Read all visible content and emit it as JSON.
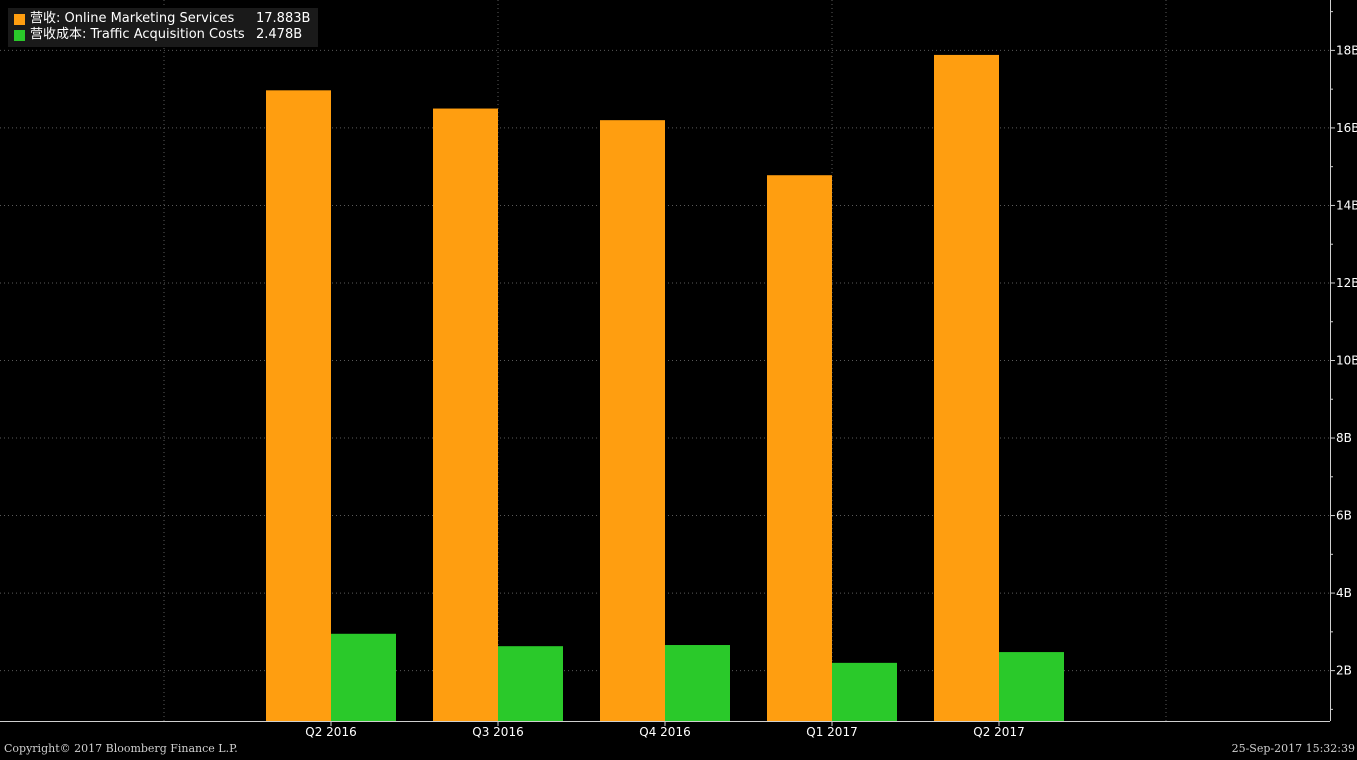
{
  "chart_data": {
    "type": "bar",
    "categories": [
      "Q2 2016",
      "Q3 2016",
      "Q4 2016",
      "Q1 2017",
      "Q2 2017"
    ],
    "series": [
      {
        "name": "营收: Online Marketing Services",
        "legend_value": "17.883B",
        "color": "#ff9e10",
        "values": [
          16.97,
          16.5,
          16.2,
          14.78,
          17.883
        ]
      },
      {
        "name": "营收成本: Traffic Acquisition Costs",
        "legend_value": "2.478B",
        "color": "#2ac92a",
        "values": [
          2.95,
          2.63,
          2.66,
          2.2,
          2.478
        ]
      }
    ],
    "y_ticks": [
      2,
      4,
      6,
      8,
      10,
      12,
      14,
      16,
      18
    ],
    "y_tick_labels": [
      "2B",
      "4B",
      "6B",
      "8B",
      "10B",
      "12B",
      "14B",
      "16B",
      "18B"
    ],
    "ylim": [
      0.7,
      19.3
    ],
    "y_axis_side": "right",
    "grid": true,
    "legend_position": "top-left"
  },
  "footer": {
    "copyright": "Copyright© 2017 Bloomberg Finance L.P.",
    "timestamp": "25-Sep-2017 15:32:39"
  }
}
